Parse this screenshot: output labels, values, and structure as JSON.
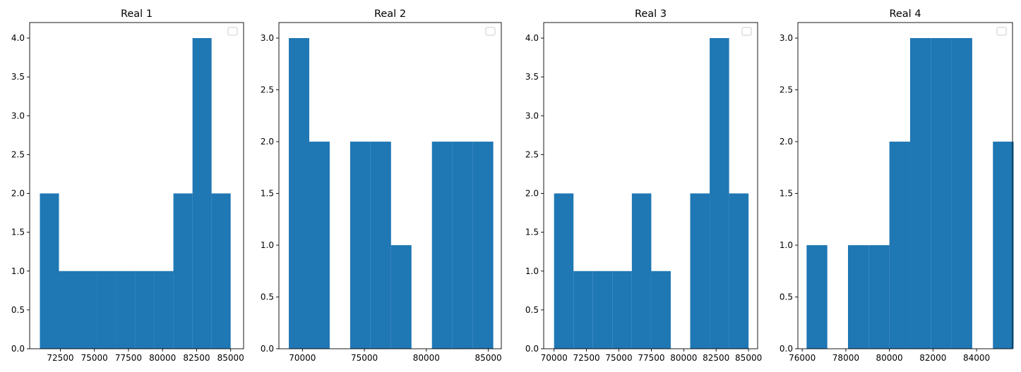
{
  "chart_data": [
    {
      "type": "bar",
      "title": "Real 1",
      "xlim": [
        70250,
        85950
      ],
      "ylim": [
        0,
        4.2
      ],
      "xticks": [
        72500,
        75000,
        77500,
        80000,
        82500,
        85000
      ],
      "xtick_labels": [
        "72500",
        "75000",
        "77500",
        "80000",
        "82500",
        "85000"
      ],
      "yticks": [
        0,
        0.5,
        1,
        1.5,
        2,
        2.5,
        3,
        3.5,
        4
      ],
      "ytick_labels": [
        "0.0",
        "0.5",
        "1.0",
        "1.5",
        "2.0",
        "2.5",
        "3.0",
        "3.5",
        "4.0"
      ],
      "bin_edges": [
        71000,
        72400,
        73800,
        75200,
        76600,
        78000,
        79400,
        80800,
        82200,
        83600,
        85000
      ],
      "values": [
        2,
        1,
        1,
        1,
        1,
        1,
        1,
        2,
        4,
        2
      ],
      "color": "#1f77b4",
      "legend": "top-right"
    },
    {
      "type": "bar",
      "title": "Real 2",
      "xlim": [
        68100,
        86050
      ],
      "ylim": [
        0,
        3.15
      ],
      "xticks": [
        70000,
        75000,
        80000,
        85000
      ],
      "xtick_labels": [
        "70000",
        "75000",
        "80000",
        "85000"
      ],
      "yticks": [
        0,
        0.5,
        1,
        1.5,
        2,
        2.5,
        3
      ],
      "ytick_labels": [
        "0.0",
        "0.5",
        "1.0",
        "1.5",
        "2.0",
        "2.5",
        "3.0"
      ],
      "bin_edges": [
        68900,
        70550,
        72200,
        73850,
        75500,
        77150,
        78800,
        80450,
        82100,
        83750,
        85400
      ],
      "values": [
        3,
        2,
        0,
        2,
        2,
        1,
        0,
        2,
        2,
        2
      ],
      "color": "#1f77b4",
      "legend": "top-right"
    },
    {
      "type": "bar",
      "title": "Real 3",
      "xlim": [
        69200,
        85700
      ],
      "ylim": [
        0,
        4.2
      ],
      "xticks": [
        70000,
        72500,
        75000,
        77500,
        80000,
        82500,
        85000
      ],
      "xtick_labels": [
        "70000",
        "72500",
        "75000",
        "77500",
        "80000",
        "82500",
        "85000"
      ],
      "yticks": [
        0,
        0.5,
        1,
        1.5,
        2,
        2.5,
        3,
        3.5,
        4
      ],
      "ytick_labels": [
        "0.0",
        "0.5",
        "1.0",
        "1.5",
        "2.0",
        "2.5",
        "3.0",
        "3.5",
        "4.0"
      ],
      "bin_edges": [
        70000,
        71500,
        73000,
        74500,
        76000,
        77500,
        79000,
        80500,
        82000,
        83500,
        85000
      ],
      "values": [
        2,
        1,
        1,
        1,
        2,
        1,
        0,
        2,
        4,
        2
      ],
      "color": "#1f77b4",
      "legend": "top-right"
    },
    {
      "type": "bar",
      "title": "Real 4",
      "xlim": [
        75800,
        85650
      ],
      "ylim": [
        0,
        3.15
      ],
      "xticks": [
        76000,
        78000,
        80000,
        82000,
        84000
      ],
      "xtick_labels": [
        "76000",
        "78000",
        "80000",
        "82000",
        "84000"
      ],
      "yticks": [
        0,
        0.5,
        1,
        1.5,
        2,
        2.5,
        3
      ],
      "ytick_labels": [
        "0.0",
        "0.5",
        "1.0",
        "1.5",
        "2.0",
        "2.5",
        "3.0"
      ],
      "bin_edges": [
        76200,
        77150,
        78100,
        79050,
        80000,
        80950,
        81900,
        82850,
        83800,
        84750,
        85700
      ],
      "values": [
        1,
        0,
        1,
        1,
        2,
        3,
        3,
        3,
        0,
        2
      ],
      "color": "#1f77b4",
      "legend": "top-right"
    }
  ]
}
